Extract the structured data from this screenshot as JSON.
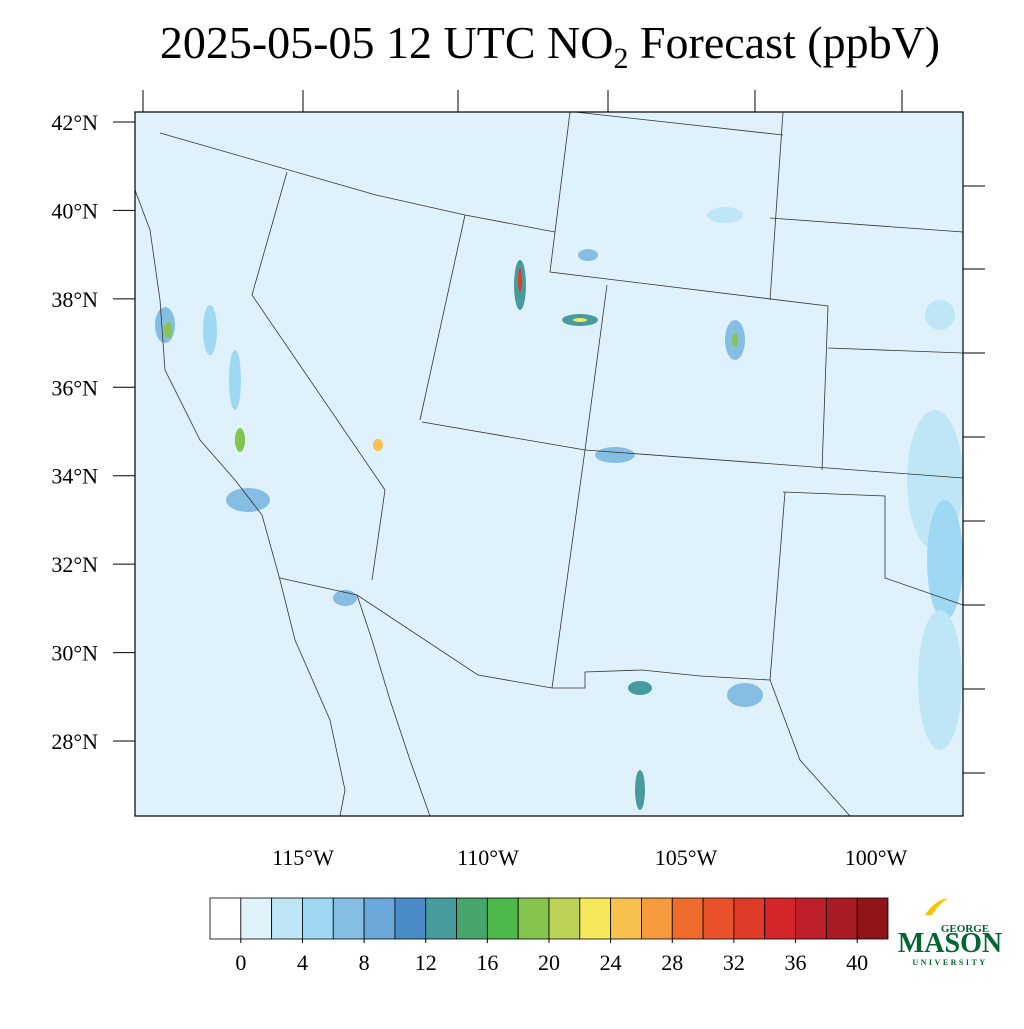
{
  "title": {
    "text": "2025-05-05 12 UTC NO",
    "subscript": "2",
    "suffix": " Forecast (ppbV)"
  },
  "map": {
    "lat_ticks": [
      {
        "value": 42,
        "label": "42°N"
      },
      {
        "value": 40,
        "label": "40°N"
      },
      {
        "value": 38,
        "label": "38°N"
      },
      {
        "value": 36,
        "label": "36°N"
      },
      {
        "value": 34,
        "label": "34°N"
      },
      {
        "value": 32,
        "label": "32°N"
      },
      {
        "value": 30,
        "label": "30°N"
      },
      {
        "value": 28,
        "label": "28°N"
      }
    ],
    "lon_ticks": [
      {
        "value": -115,
        "label": "115°W"
      },
      {
        "value": -110,
        "label": "110°W"
      },
      {
        "value": -105,
        "label": "105°W"
      },
      {
        "value": -100,
        "label": "100°W"
      }
    ]
  },
  "colorbar": {
    "colors": [
      "#ffffff",
      "#e0f3fb",
      "#bfe6f7",
      "#9fd8f3",
      "#85bde3",
      "#6aa8da",
      "#4a8cc8",
      "#469b9c",
      "#45a56a",
      "#4cb84a",
      "#85c54f",
      "#bdd356",
      "#f7e85b",
      "#f8c14f",
      "#f59a3f",
      "#ef6b2c",
      "#e8512a",
      "#df3b28",
      "#d3252a",
      "#bf1f2a",
      "#aa1b23",
      "#8f1519"
    ],
    "ticks": [
      0,
      4,
      8,
      12,
      16,
      20,
      24,
      28,
      32,
      36,
      40
    ]
  },
  "logo": {
    "top": "GEORGE",
    "main": "MASON",
    "bottom": "UNIVERSITY"
  }
}
